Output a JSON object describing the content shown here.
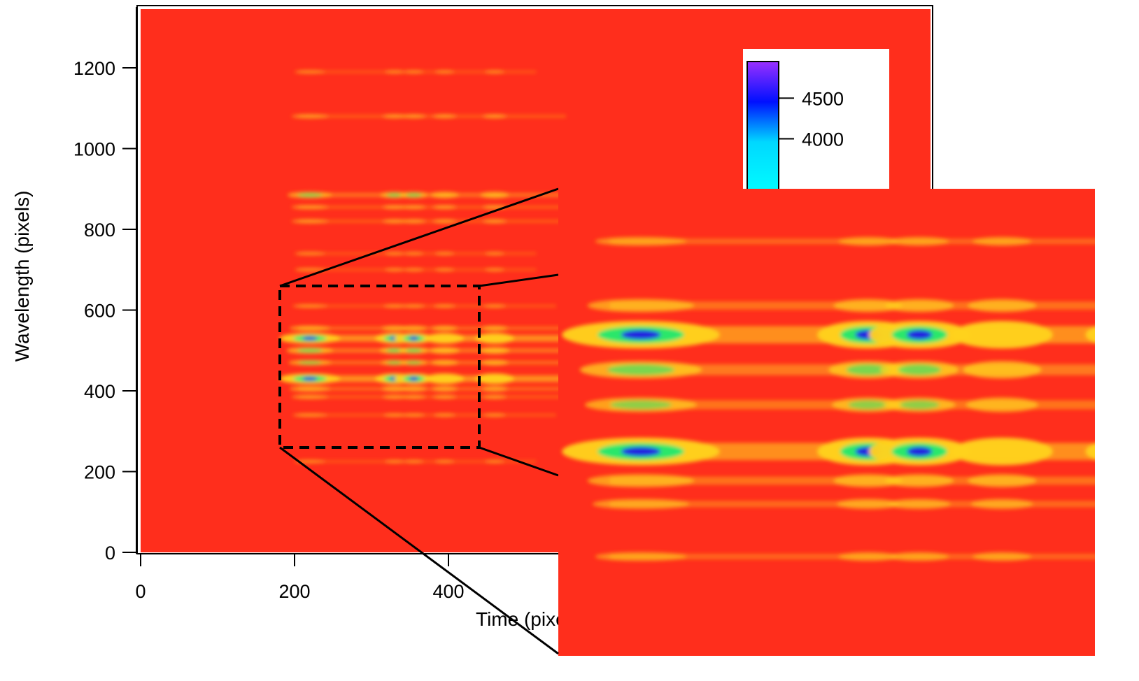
{
  "chart_data": {
    "type": "heatmap",
    "xlabel": "Time (pixels)",
    "ylabel": "Wavelength (pixels)",
    "xlim": [
      0,
      1040
    ],
    "ylim": [
      0,
      1350
    ],
    "x_ticks": [
      0,
      200,
      400
    ],
    "y_ticks": [
      0,
      200,
      400,
      600,
      800,
      1000,
      1200
    ],
    "colorbar": {
      "ticks": [
        4000,
        4500
      ],
      "range": [
        3300,
        4950
      ]
    },
    "colors": {
      "background": "#ff2e1c",
      "band": "#ffd21f",
      "peak": "#20e870",
      "max": "#2222e0"
    },
    "zoom_region": {
      "x": [
        180,
        440
      ],
      "y": [
        255,
        655
      ]
    },
    "columns": [
      220,
      330,
      355,
      395,
      460
    ],
    "bands": [
      {
        "y": 1190,
        "strength": 0.2
      },
      {
        "y": 1080,
        "strength": 0.35
      },
      {
        "y": 885,
        "strength": 0.55
      },
      {
        "y": 855,
        "strength": 0.35
      },
      {
        "y": 820,
        "strength": 0.35
      },
      {
        "y": 740,
        "strength": 0.2
      },
      {
        "y": 700,
        "strength": 0.2
      },
      {
        "y": 610,
        "strength": 0.3
      },
      {
        "y": 555,
        "strength": 0.45
      },
      {
        "y": 530,
        "strength": 0.95
      },
      {
        "y": 500,
        "strength": 0.6
      },
      {
        "y": 470,
        "strength": 0.5
      },
      {
        "y": 430,
        "strength": 0.95
      },
      {
        "y": 405,
        "strength": 0.45
      },
      {
        "y": 385,
        "strength": 0.35
      },
      {
        "y": 340,
        "strength": 0.3
      },
      {
        "y": 225,
        "strength": 0.2
      }
    ]
  }
}
